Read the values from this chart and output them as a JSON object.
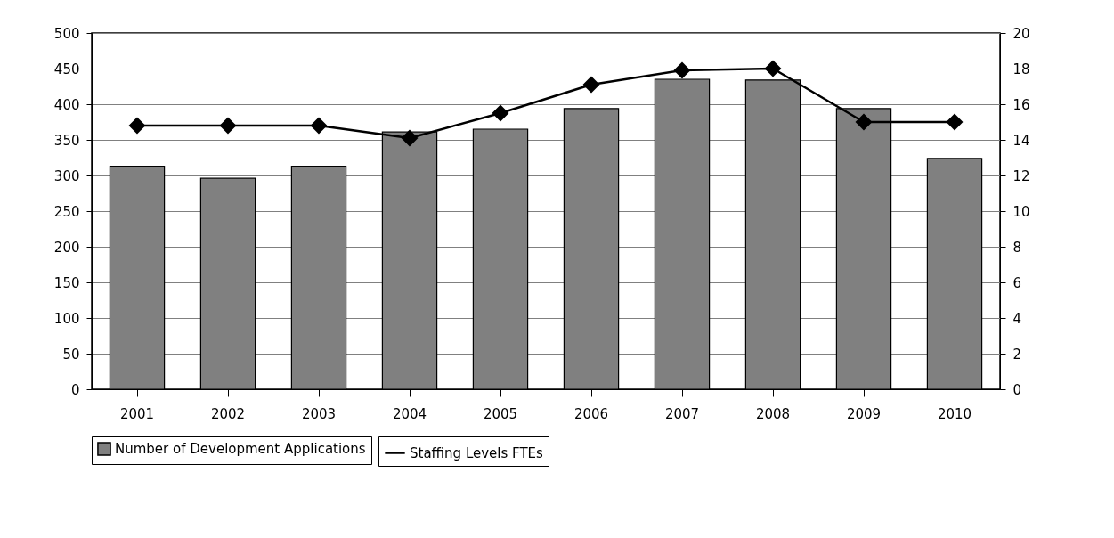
{
  "chart_data": {
    "type": "bar",
    "categories": [
      "2001",
      "2002",
      "2003",
      "2004",
      "2005",
      "2006",
      "2007",
      "2008",
      "2009",
      "2010"
    ],
    "series": [
      {
        "name": "Number of Development Applications",
        "color": "#808080",
        "values": [
          313,
          296,
          313,
          361,
          365,
          394,
          435,
          434,
          394,
          324
        ]
      },
      {
        "name": "Staffing Levels FTEs",
        "color": "#000000",
        "type": "line",
        "axis": "y2",
        "values": [
          14.8,
          14.8,
          14.8,
          14.1,
          15.5,
          17.1,
          17.9,
          18.0,
          15.0,
          15.0
        ]
      }
    ],
    "ylim": [
      0,
      500
    ],
    "yticks": [
      0,
      50,
      100,
      150,
      200,
      250,
      300,
      350,
      400,
      450,
      500
    ],
    "y2lim": [
      0,
      20
    ],
    "y2ticks": [
      0,
      2,
      4,
      6,
      8,
      10,
      12,
      14,
      16,
      18,
      20
    ],
    "grid": "y",
    "legend": "bottom",
    "marker": "diamond",
    "line_style": "solid"
  }
}
